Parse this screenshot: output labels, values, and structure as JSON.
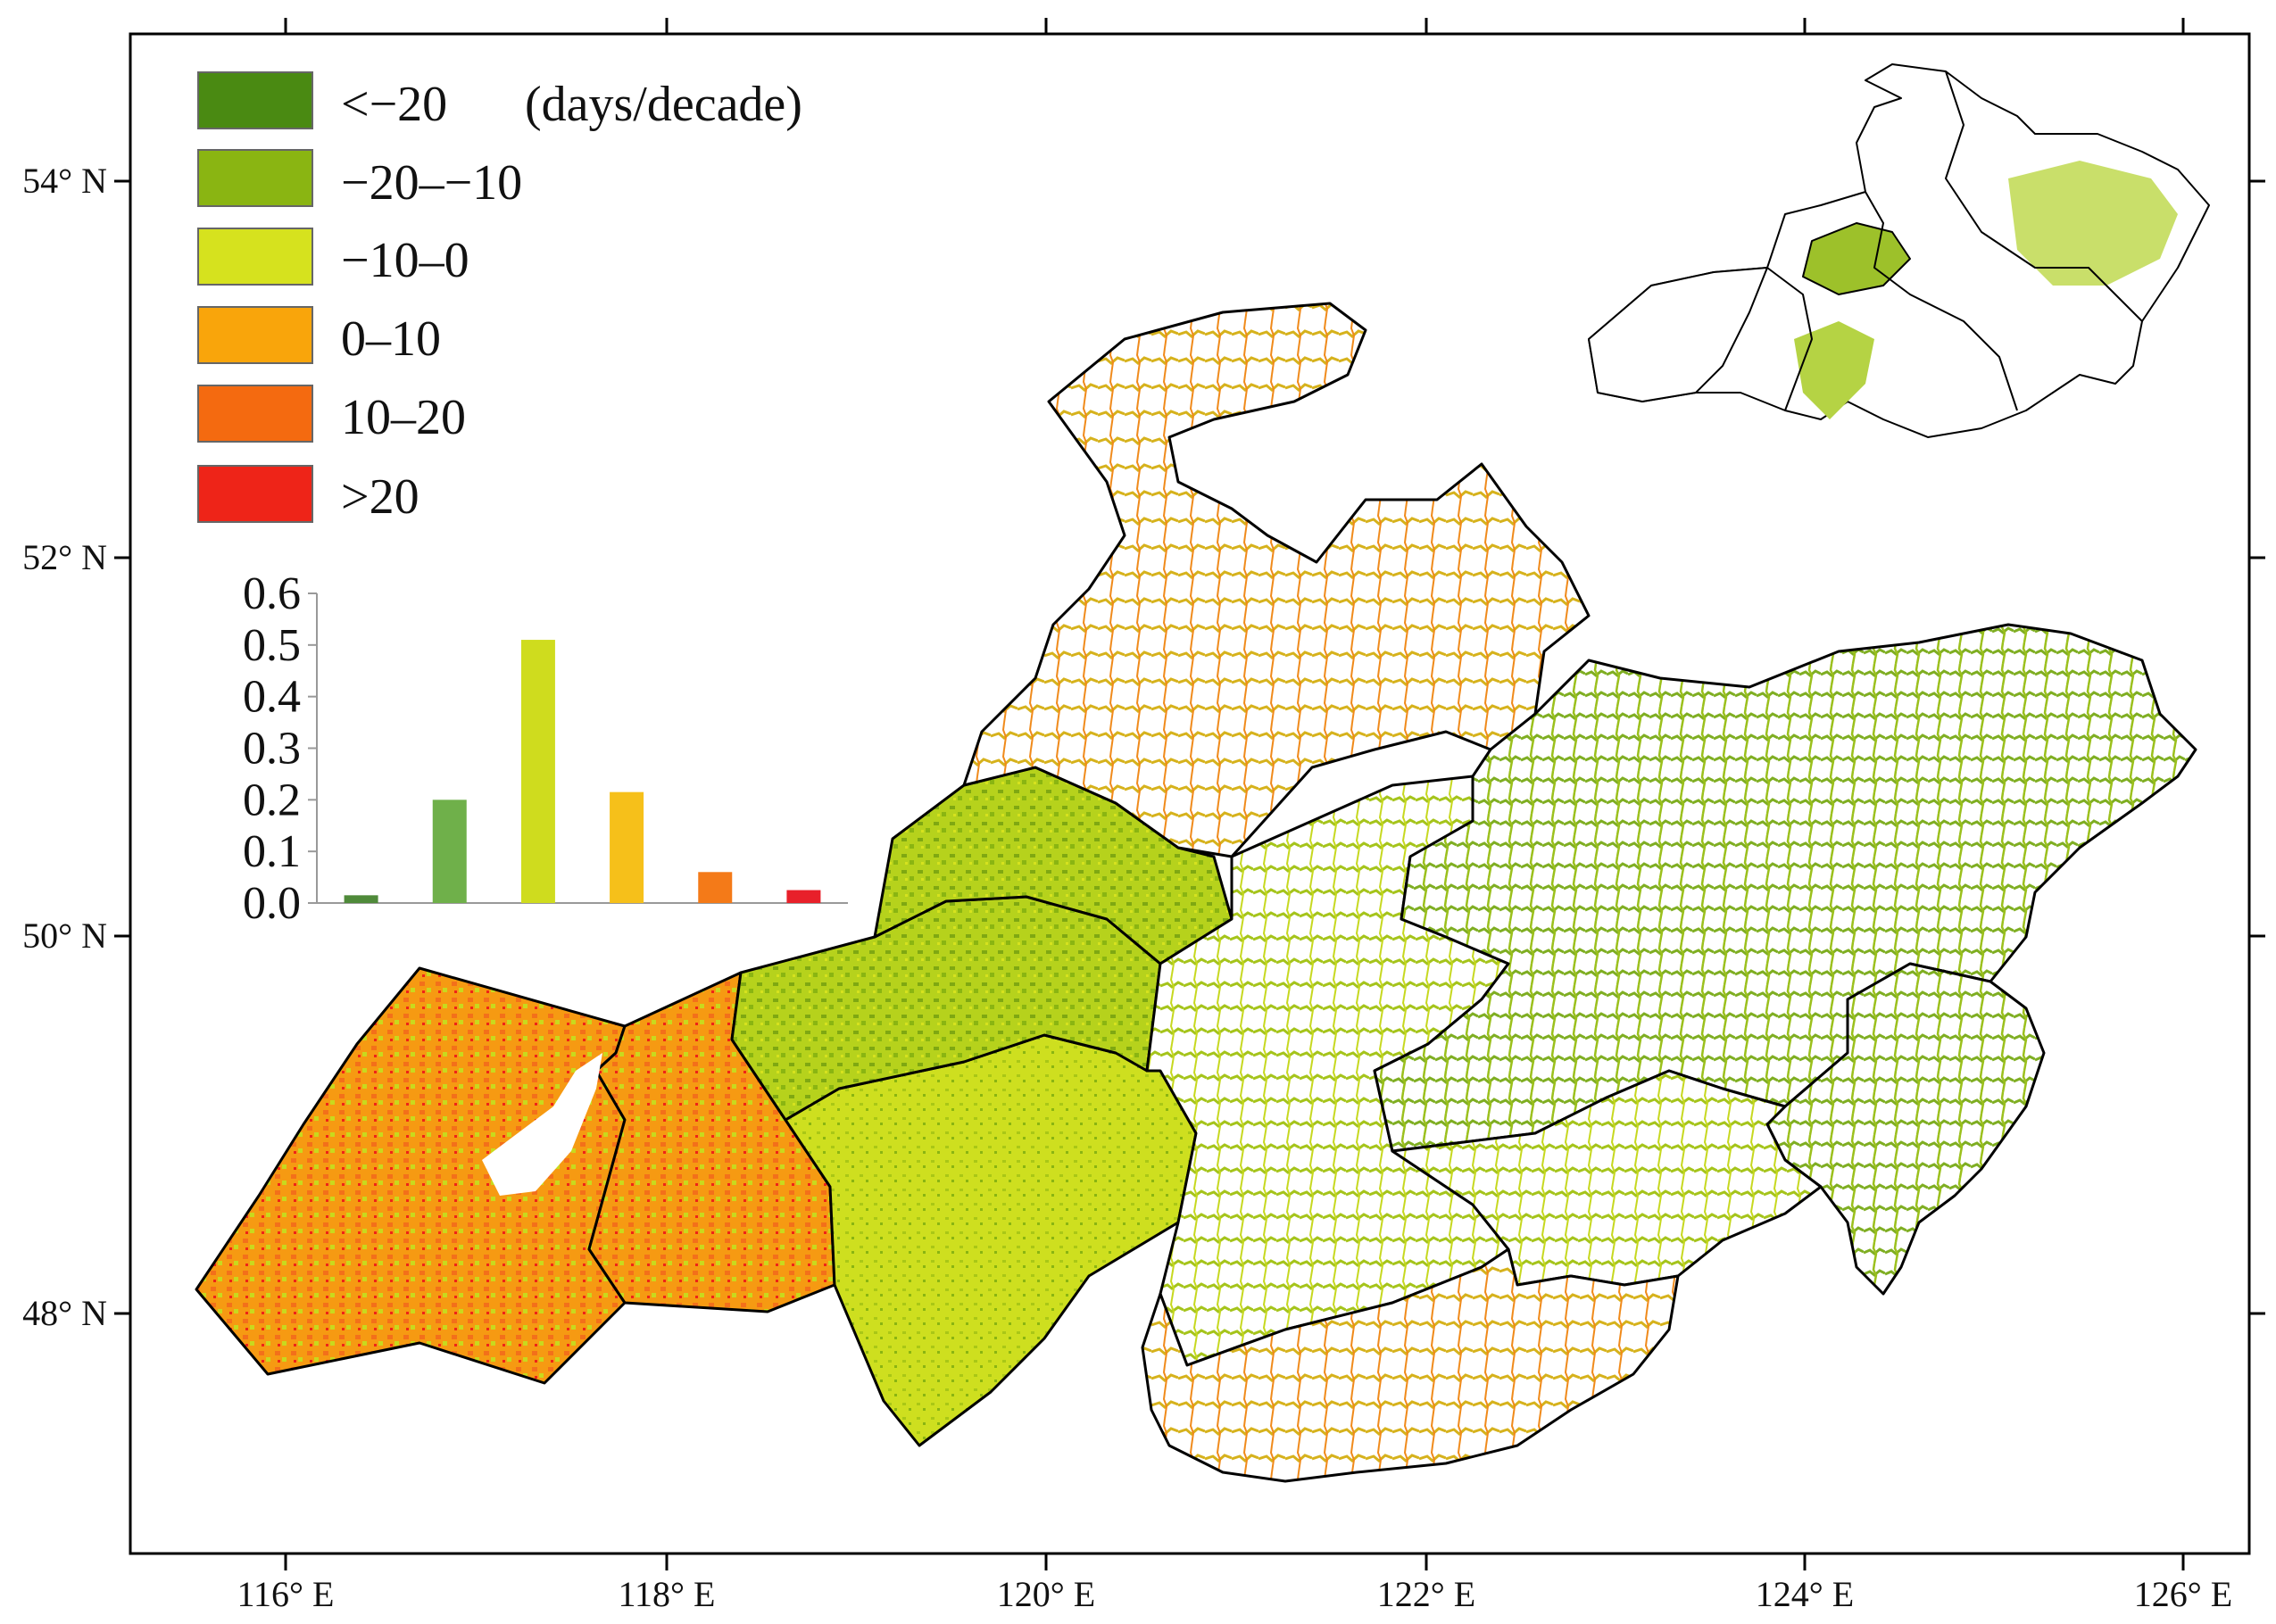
{
  "map": {
    "longitude_labels": [
      "116° E",
      "118° E",
      "120° E",
      "122° E",
      "124° E",
      "126° E"
    ],
    "latitude_labels": [
      "54° N",
      "52° N",
      "50° N",
      "48° N"
    ]
  },
  "legend": {
    "unit": "(days/decade)",
    "classes": [
      {
        "label": "<−20",
        "color": "#4a8a12"
      },
      {
        "label": "−20–−10",
        "color": "#8ab512"
      },
      {
        "label": "−10–0",
        "color": "#d6e21e"
      },
      {
        "label": "0–10",
        "color": "#f9a50b"
      },
      {
        "label": "10–20",
        "color": "#f46a10"
      },
      {
        "label": ">20",
        "color": "#ee2418"
      }
    ]
  },
  "chart_data": {
    "type": "bar",
    "categories": [
      "<−20",
      "−20–−10",
      "−10–0",
      "0–10",
      "10–20",
      ">20"
    ],
    "values": [
      0.015,
      0.2,
      0.51,
      0.215,
      0.06,
      0.025
    ],
    "colors": [
      "#4f8a3a",
      "#6fb04a",
      "#cfdc1e",
      "#f6c01a",
      "#f47a18",
      "#e8202a"
    ],
    "yticks": [
      "0.0",
      "0.1",
      "0.2",
      "0.3",
      "0.4",
      "0.5",
      "0.6"
    ],
    "ylim": [
      0,
      0.6
    ]
  }
}
